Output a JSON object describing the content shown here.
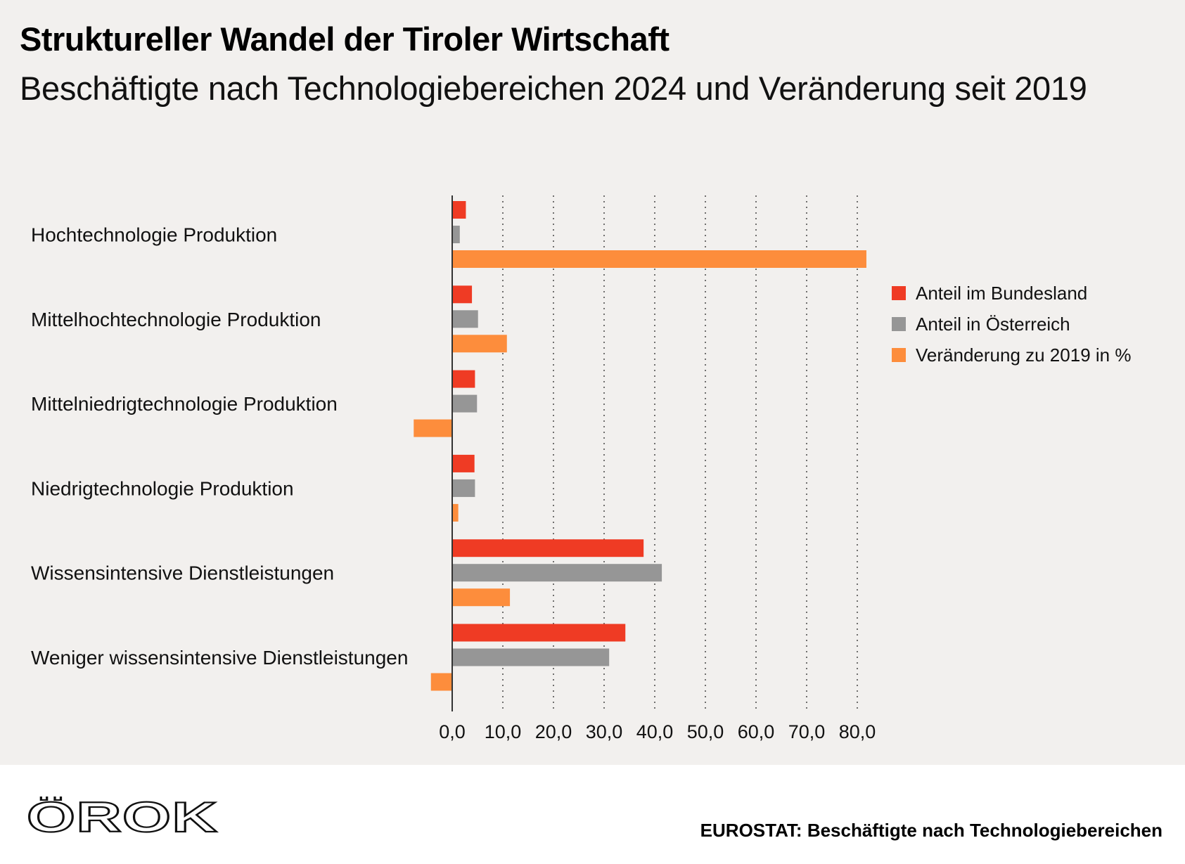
{
  "header": {
    "title": "Struktureller Wandel der Tiroler Wirtschaft",
    "subtitle": "Beschäftigte nach Technologiebereichen 2024 und Veränderung seit 2019"
  },
  "chart_data": {
    "type": "bar",
    "orientation": "horizontal",
    "categories": [
      "Hochtechnologie Produktion",
      "Mittelhochtechnologie Produktion",
      "Mittelniedrigtechnologie Produktion",
      "Niedrigtechnologie Produktion",
      "Wissensintensive Dienstleistungen",
      "Weniger wissensintensive Dienstleistungen"
    ],
    "series": [
      {
        "name": "Anteil im Bundesland",
        "color": "#ef3b24",
        "values": [
          2.7,
          3.9,
          4.5,
          4.4,
          37.8,
          34.2
        ]
      },
      {
        "name": "Anteil in Österreich",
        "color": "#969696",
        "values": [
          1.5,
          5.1,
          4.9,
          4.5,
          41.4,
          31.0
        ]
      },
      {
        "name": "Veränderung zu 2019 in %",
        "color": "#fd8d3c",
        "values": [
          81.8,
          10.8,
          -7.6,
          1.2,
          11.4,
          -4.2
        ]
      }
    ],
    "xlim": [
      -8,
      82
    ],
    "xticks": [
      0,
      10,
      20,
      30,
      40,
      50,
      60,
      70,
      80
    ],
    "tick_labels": [
      "0,0",
      "10,0",
      "20,0",
      "30,0",
      "40,0",
      "50,0",
      "60,0",
      "70,0",
      "80,0"
    ],
    "grid": "vertical dotted",
    "legend_position": "right"
  },
  "footer": {
    "logo_text": "ÖROK",
    "source": "EUROSTAT: Beschäftigte nach Technologiebereichen"
  }
}
